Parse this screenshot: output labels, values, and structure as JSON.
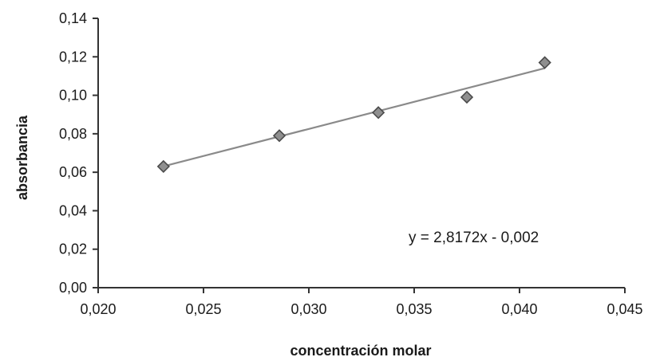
{
  "chart_data": {
    "type": "scatter",
    "xlabel": "concentración molar",
    "ylabel": "absorbancia",
    "xlim": [
      0.02,
      0.045
    ],
    "ylim": [
      0.0,
      0.14
    ],
    "x_ticks": [
      "0,020",
      "0,025",
      "0,030",
      "0,035",
      "0,040",
      "0,045"
    ],
    "y_ticks": [
      "0,00",
      "0,02",
      "0,04",
      "0,06",
      "0,08",
      "0,10",
      "0,12",
      "0,14"
    ],
    "series": [
      {
        "points": [
          {
            "x": 0.0231,
            "y": 0.063
          },
          {
            "x": 0.0286,
            "y": 0.079
          },
          {
            "x": 0.0333,
            "y": 0.091
          },
          {
            "x": 0.0375,
            "y": 0.099
          },
          {
            "x": 0.0412,
            "y": 0.117
          }
        ]
      }
    ],
    "trendline": {
      "slope": 2.8172,
      "intercept": -0.002,
      "x_range": [
        0.0231,
        0.0412
      ],
      "equation": "y = 2,8172x - 0,002"
    },
    "grid": false,
    "legend": "none"
  }
}
